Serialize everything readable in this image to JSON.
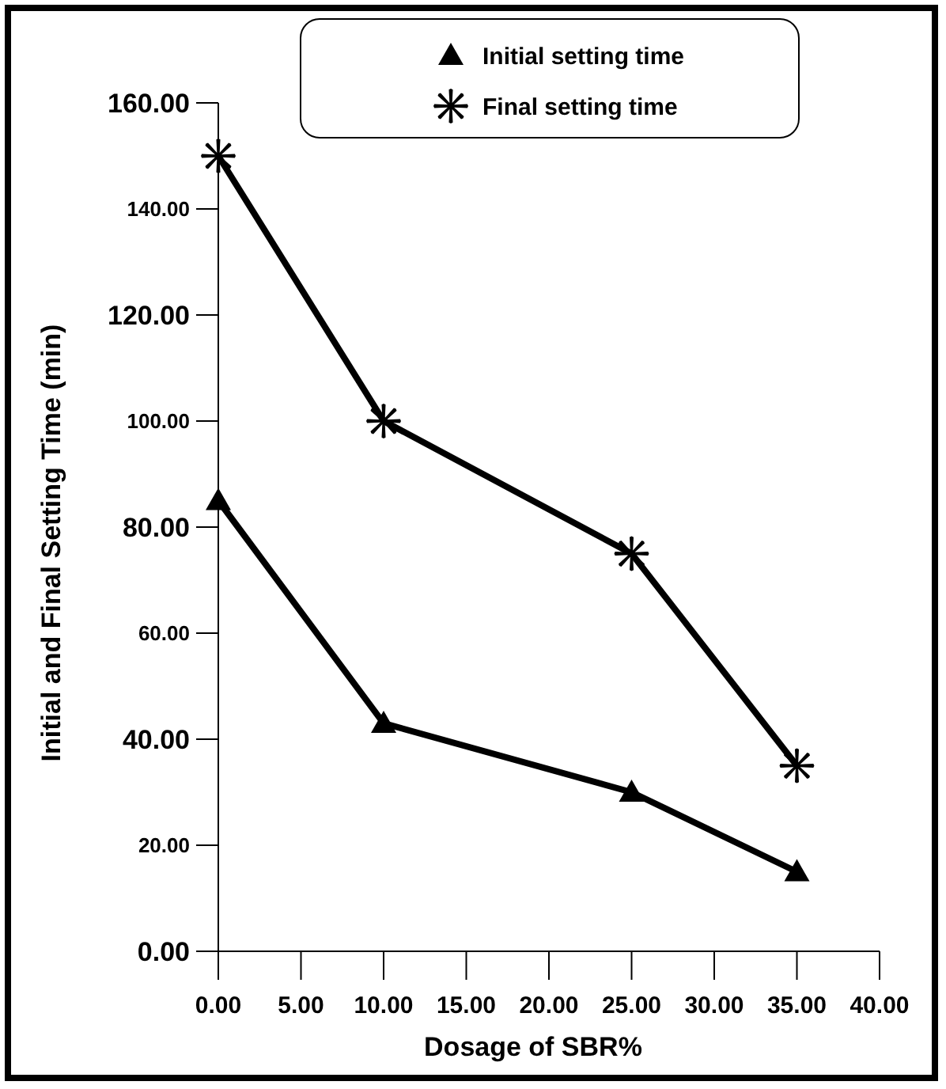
{
  "chart_data": {
    "type": "line",
    "xlabel": "Dosage of SBR%",
    "ylabel": "Initial and Final Setting Time (min)",
    "x": [
      0,
      10,
      25,
      35
    ],
    "series": [
      {
        "name": "Initial setting time",
        "color": "#000000",
        "marker": "triangle",
        "values": [
          85,
          43,
          30,
          15
        ]
      },
      {
        "name": "Final setting time",
        "color": "#000000",
        "marker": "cross",
        "values": [
          150,
          100,
          75,
          35
        ]
      }
    ],
    "xlim": [
      0,
      40
    ],
    "xticks": [
      {
        "value": 0,
        "label": "0.00"
      },
      {
        "value": 5,
        "label": "5.00"
      },
      {
        "value": 10,
        "label": "10.00"
      },
      {
        "value": 15,
        "label": "15.00"
      },
      {
        "value": 20,
        "label": "20.00"
      },
      {
        "value": 25,
        "label": "25.00"
      },
      {
        "value": 30,
        "label": "30.00"
      },
      {
        "value": 35,
        "label": "35.00"
      },
      {
        "value": 40,
        "label": "40.00"
      }
    ],
    "ylim": [
      0,
      160
    ],
    "yticks": [
      {
        "value": 0,
        "label": "0.00"
      },
      {
        "value": 20,
        "label": "20.00"
      },
      {
        "value": 40,
        "label": "40.00"
      },
      {
        "value": 60,
        "label": "60.00"
      },
      {
        "value": 80,
        "label": "80.00"
      },
      {
        "value": 100,
        "label": "100.00"
      },
      {
        "value": 120,
        "label": "120.00"
      },
      {
        "value": 140,
        "label": "140.00"
      },
      {
        "value": 160,
        "label": "160.00"
      }
    ],
    "grid": false,
    "legend": "top",
    "line_style": "solid"
  }
}
